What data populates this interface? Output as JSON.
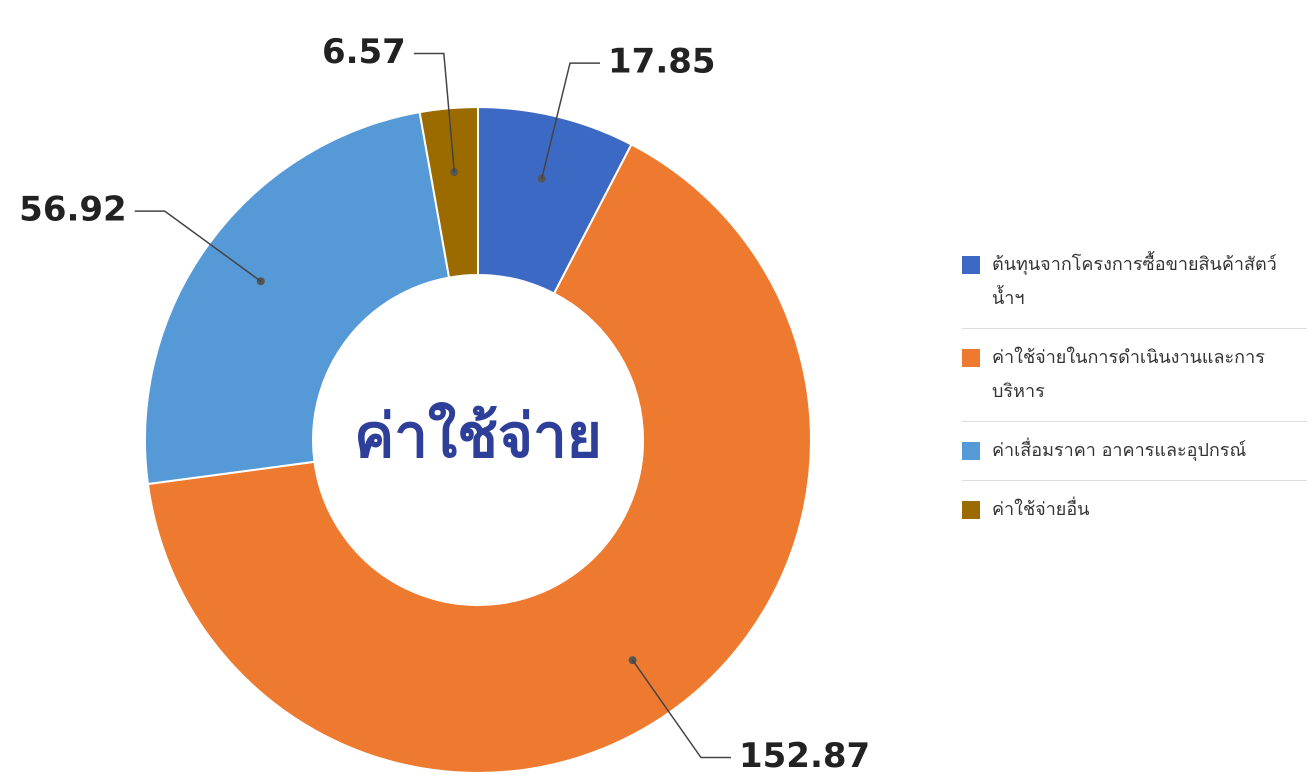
{
  "chart_data": {
    "type": "donut",
    "center_label": "ค่าใช้จ่าย",
    "categories": [
      "ต้นทุนจากโครงการซื้อขายสินค้าสัตว์น้ำฯ",
      "ค่าใช้จ่ายในการดำเนินงานและการบริหาร",
      "ค่าเสื่อมราคา อาคารและอุปกรณ์",
      "ค่าใช้จ่ายอื่น"
    ],
    "values": [
      17.85,
      152.87,
      56.92,
      6.57
    ],
    "colors": [
      "#3b69c4",
      "#ee7a2f",
      "#5599d6",
      "#9c6b00"
    ],
    "legend": "right"
  }
}
